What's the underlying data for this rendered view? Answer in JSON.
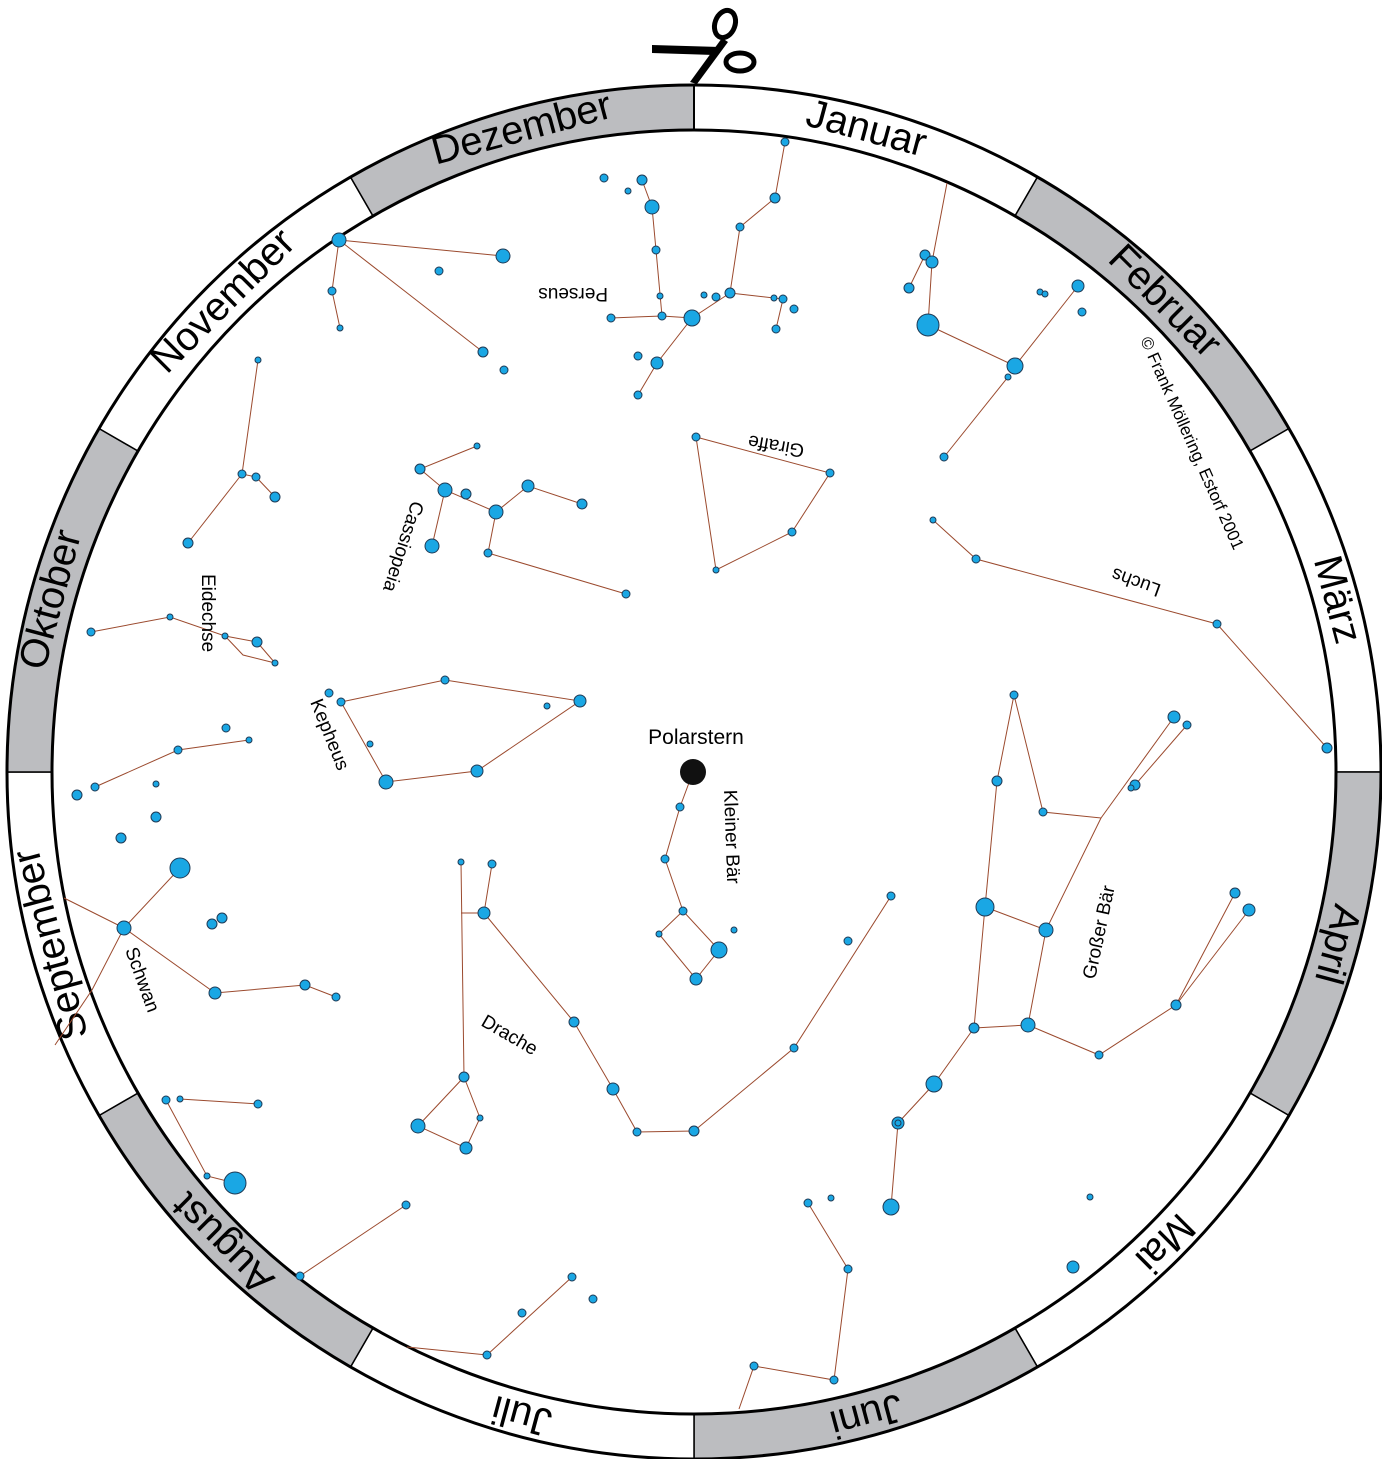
{
  "months": [
    "Januar",
    "Februar",
    "März",
    "April",
    "Mai",
    "Juni",
    "Juli",
    "August",
    "September",
    "Oktober",
    "November",
    "Dezember"
  ],
  "colors": {
    "shaded": "#bcbdc0",
    "plain": "#ffffff",
    "star": "#1aa7e4",
    "line": "#9b4a2e",
    "polaris": "#111111"
  },
  "icons": {
    "cut": "scissors-icon"
  },
  "labels": {
    "polaris": "Polarstern",
    "copyright": "© Frank Möllering, Estorf 2001",
    "perseus": "Perseus",
    "giraffe": "Giraffe",
    "luchs": "Luchs",
    "cassiopeia": "Cassiopeia",
    "eidechse": "Eidechse",
    "kepheus": "Kepheus",
    "kleiner_baer": "Kleiner Bär",
    "grosser_baer": "Großer Bär",
    "drache": "Drache",
    "schwan": "Schwan"
  }
}
